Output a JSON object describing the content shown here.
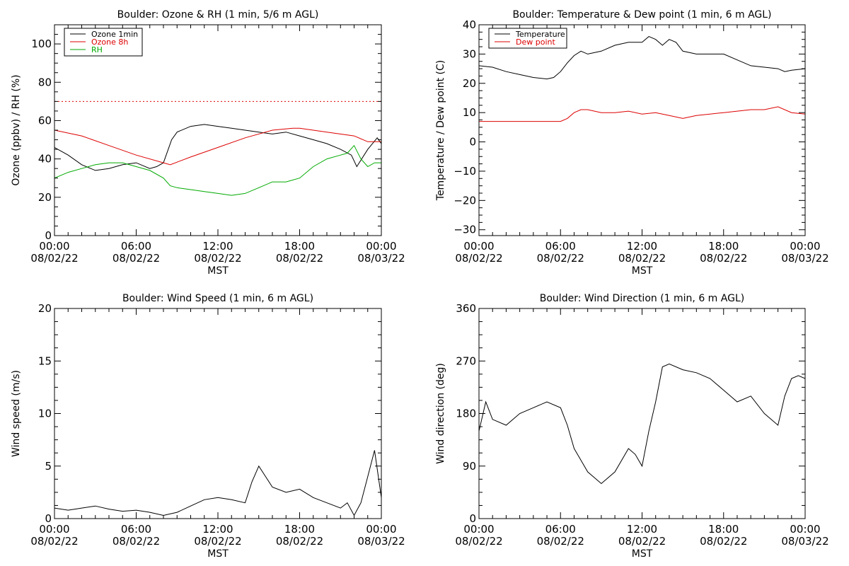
{
  "figure": {
    "panels": [
      {
        "title": "Boulder: Ozone & RH (1 min, 5/6 m AGL)",
        "ylabel": "Ozone (ppbv) / RH (%)",
        "xlabel": "MST",
        "x_ticks": [
          {
            "line1": "00:00",
            "line2": "08/02/22"
          },
          {
            "line1": "06:00",
            "line2": "08/02/22"
          },
          {
            "line1": "12:00",
            "line2": "08/02/22"
          },
          {
            "line1": "18:00",
            "line2": "08/02/22"
          },
          {
            "line1": "00:00",
            "line2": "08/03/22"
          }
        ],
        "y_ticks": [
          "0",
          "20",
          "40",
          "60",
          "80",
          "100"
        ],
        "legend": [
          "Ozone 1min",
          "Ozone 8h",
          "RH"
        ]
      },
      {
        "title": "Boulder: Temperature & Dew point (1 min, 6 m AGL)",
        "ylabel": "Temperature / Dew point (C)",
        "xlabel": "MST",
        "x_ticks": [
          {
            "line1": "00:00",
            "line2": "08/02/22"
          },
          {
            "line1": "06:00",
            "line2": "08/02/22"
          },
          {
            "line1": "12:00",
            "line2": "08/02/22"
          },
          {
            "line1": "18:00",
            "line2": "08/02/22"
          },
          {
            "line1": "00:00",
            "line2": "08/03/22"
          }
        ],
        "y_ticks": [
          "−30",
          "−20",
          "−10",
          "0",
          "10",
          "20",
          "30",
          "40"
        ],
        "legend": [
          "Temperature",
          "Dew point"
        ]
      },
      {
        "title": "Boulder: Wind Speed (1 min, 6 m AGL)",
        "ylabel": "Wind speed (m/s)",
        "xlabel": "MST",
        "x_ticks": [
          {
            "line1": "00:00",
            "line2": "08/02/22"
          },
          {
            "line1": "06:00",
            "line2": "08/02/22"
          },
          {
            "line1": "12:00",
            "line2": "08/02/22"
          },
          {
            "line1": "18:00",
            "line2": "08/02/22"
          },
          {
            "line1": "00:00",
            "line2": "08/03/22"
          }
        ],
        "y_ticks": [
          "0",
          "5",
          "10",
          "15",
          "20"
        ],
        "legend": []
      },
      {
        "title": "Boulder: Wind Direction (1 min, 6 m AGL)",
        "ylabel": "Wind direction (deg)",
        "xlabel": "MST",
        "x_ticks": [
          {
            "line1": "00:00",
            "line2": "08/02/22"
          },
          {
            "line1": "06:00",
            "line2": "08/02/22"
          },
          {
            "line1": "12:00",
            "line2": "08/02/22"
          },
          {
            "line1": "18:00",
            "line2": "08/02/22"
          },
          {
            "line1": "00:00",
            "line2": "08/03/22"
          }
        ],
        "y_ticks": [
          "0",
          "90",
          "180",
          "270",
          "360"
        ],
        "legend": []
      }
    ]
  },
  "chart_data": [
    {
      "type": "line",
      "title": "Boulder: Ozone & RH (1 min, 5/6 m AGL)",
      "xlabel": "MST",
      "ylabel": "Ozone (ppbv) / RH (%)",
      "x_unit": "hours since 08/02/22 00:00 MST",
      "xlim": [
        0,
        24
      ],
      "ylim": [
        0,
        110
      ],
      "grid": false,
      "legend_position": "top-left",
      "series": [
        {
          "name": "Ozone 1min",
          "color": "#000000",
          "x": [
            0,
            1,
            2,
            3,
            4,
            5,
            6,
            7,
            7.5,
            8,
            8.3,
            8.6,
            9,
            10,
            11,
            12,
            13,
            14,
            15,
            16,
            17,
            18,
            19,
            20,
            21,
            21.8,
            22.2,
            23,
            23.7,
            24
          ],
          "y": [
            46,
            42,
            37,
            34,
            35,
            37,
            38,
            35,
            36,
            38,
            44,
            50,
            54,
            57,
            58,
            57,
            56,
            55,
            54,
            53,
            54,
            52,
            50,
            48,
            45,
            42,
            36,
            45,
            51,
            48
          ]
        },
        {
          "name": "Ozone 8h",
          "color": "#dd0000",
          "x": [
            0,
            2,
            4,
            6,
            8,
            8.5,
            10,
            12,
            14,
            16,
            17.5,
            18,
            20,
            22,
            23,
            24
          ],
          "y": [
            55,
            52,
            47,
            42,
            38,
            37,
            41,
            46,
            51,
            55,
            56,
            56,
            54,
            52,
            49,
            49
          ]
        },
        {
          "name": "RH",
          "color": "#00aa00",
          "x": [
            0,
            1,
            2,
            3,
            4,
            5,
            6,
            7,
            8,
            8.5,
            9,
            10,
            11,
            12,
            13,
            14,
            15,
            16,
            17,
            18,
            19,
            20,
            21,
            21.5,
            22,
            22.5,
            23,
            23.5,
            24
          ],
          "y": [
            30,
            33,
            35,
            37,
            38,
            38,
            36,
            34,
            30,
            26,
            25,
            24,
            23,
            22,
            21,
            22,
            25,
            28,
            28,
            30,
            36,
            40,
            42,
            43,
            47,
            40,
            36,
            38,
            38
          ]
        },
        {
          "name": "",
          "color": "#dd0000",
          "dashed": true,
          "x": [
            0,
            24
          ],
          "y": [
            70,
            70
          ]
        }
      ]
    },
    {
      "type": "line",
      "title": "Boulder: Temperature & Dew point (1 min, 6 m AGL)",
      "xlabel": "MST",
      "ylabel": "Temperature / Dew point (C)",
      "x_unit": "hours since 08/02/22 00:00 MST",
      "xlim": [
        0,
        24
      ],
      "ylim": [
        -32,
        40
      ],
      "grid": false,
      "legend_position": "top-left",
      "series": [
        {
          "name": "Temperature",
          "color": "#000000",
          "x": [
            0,
            1,
            2,
            3,
            4,
            5,
            5.5,
            6,
            6.5,
            7,
            7.5,
            8,
            9,
            10,
            11,
            12,
            12.5,
            13,
            13.5,
            14,
            14.5,
            15,
            16,
            17,
            18,
            19,
            20,
            21,
            22,
            22.5,
            23,
            24
          ],
          "y": [
            26,
            25.5,
            24,
            23,
            22,
            21.5,
            22,
            24,
            27,
            29.5,
            31,
            30,
            31,
            33,
            34,
            34,
            36,
            35,
            33,
            35,
            34,
            31,
            30,
            30,
            30,
            28,
            26,
            25.5,
            25,
            24,
            24.5,
            25
          ]
        },
        {
          "name": "Dew point",
          "color": "#dd0000",
          "x": [
            0,
            2,
            4,
            6,
            6.5,
            7,
            7.5,
            8,
            9,
            10,
            11,
            12,
            13,
            14,
            15,
            16,
            17,
            18,
            19,
            20,
            21,
            22,
            23,
            24
          ],
          "y": [
            7,
            7,
            7,
            7,
            8,
            10,
            11,
            11,
            10,
            10,
            10.5,
            9.5,
            10,
            9,
            8,
            9,
            9.5,
            10,
            10.5,
            11,
            11,
            12,
            10,
            9.5
          ]
        }
      ]
    },
    {
      "type": "line",
      "title": "Boulder: Wind Speed (1 min, 6 m AGL)",
      "xlabel": "MST",
      "ylabel": "Wind speed (m/s)",
      "x_unit": "hours since 08/02/22 00:00 MST",
      "xlim": [
        0,
        24
      ],
      "ylim": [
        0,
        20
      ],
      "grid": false,
      "series": [
        {
          "name": "",
          "color": "#000000",
          "x": [
            0,
            1,
            2,
            3,
            4,
            5,
            6,
            7,
            8,
            9,
            10,
            11,
            12,
            13,
            14,
            14.5,
            15,
            15.5,
            16,
            17,
            18,
            19,
            20,
            21,
            21.5,
            22,
            22.5,
            23,
            23.5,
            24
          ],
          "y": [
            1,
            0.8,
            1,
            1.2,
            0.9,
            0.7,
            0.8,
            0.6,
            0.3,
            0.6,
            1.2,
            1.8,
            2,
            1.8,
            1.5,
            3.5,
            5,
            4,
            3,
            2.5,
            2.8,
            2,
            1.5,
            1,
            1.5,
            0.3,
            1.5,
            4,
            6.5,
            2
          ]
        }
      ]
    },
    {
      "type": "line",
      "title": "Boulder: Wind Direction (1 min, 6 m AGL)",
      "xlabel": "MST",
      "ylabel": "Wind direction (deg)",
      "x_unit": "hours since 08/02/22 00:00 MST",
      "xlim": [
        0,
        24
      ],
      "ylim": [
        0,
        360
      ],
      "grid": false,
      "series": [
        {
          "name": "",
          "color": "#000000",
          "x": [
            0,
            0.5,
            1,
            2,
            3,
            4,
            5,
            6,
            6.5,
            7,
            7.5,
            8,
            8.5,
            9,
            10,
            11,
            11.5,
            12,
            12.5,
            13,
            13.5,
            14,
            15,
            16,
            17,
            18,
            19,
            20,
            21,
            22,
            22.5,
            23,
            23.5,
            24
          ],
          "y": [
            150,
            200,
            170,
            160,
            180,
            190,
            200,
            190,
            160,
            120,
            100,
            80,
            70,
            60,
            80,
            120,
            110,
            90,
            150,
            200,
            260,
            265,
            255,
            250,
            240,
            220,
            200,
            210,
            180,
            160,
            210,
            240,
            245,
            240
          ]
        }
      ]
    }
  ]
}
